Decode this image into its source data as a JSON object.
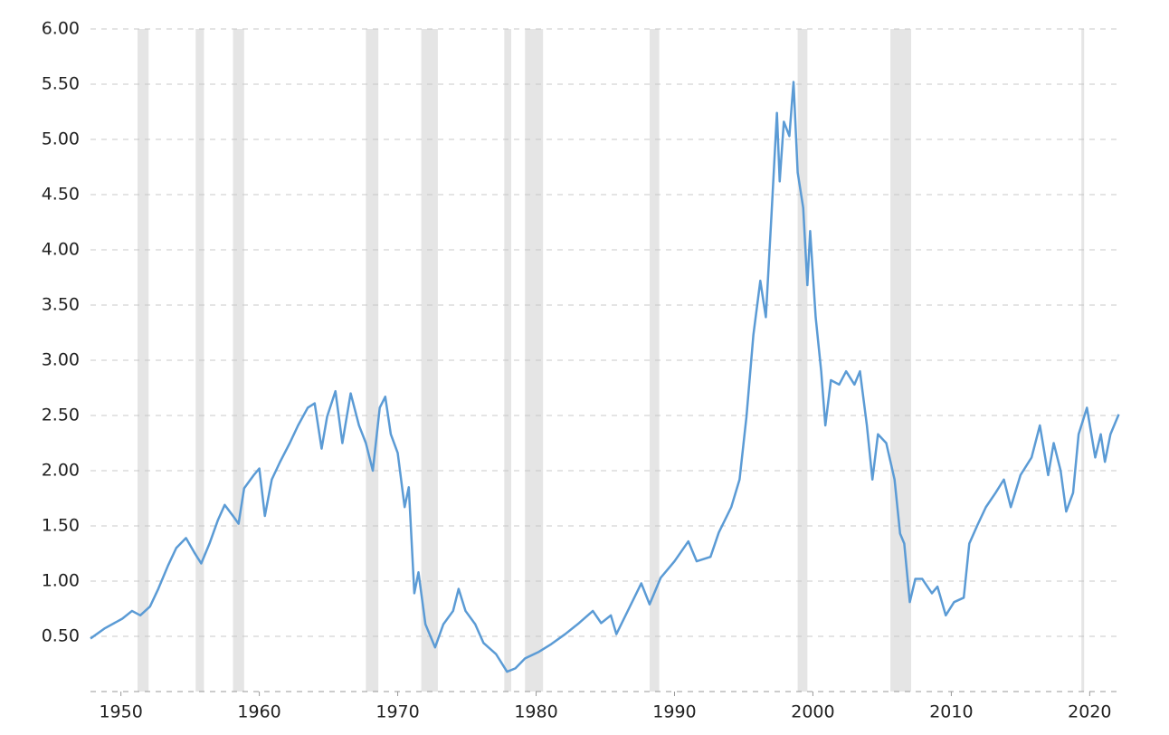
{
  "chart_data": {
    "type": "line",
    "color": "#5b9bd5",
    "band_color": "#e5e5e5",
    "grid": true,
    "xlim": [
      1947.8,
      2022.2
    ],
    "ylim": [
      0,
      6
    ],
    "xticks": [
      1950,
      1960,
      1970,
      1980,
      1990,
      2000,
      2010,
      2020
    ],
    "yticks": [
      {
        "value": 0.5,
        "label": "0.50"
      },
      {
        "value": 1,
        "label": "1.00"
      },
      {
        "value": 1.5,
        "label": "1.50"
      },
      {
        "value": 2,
        "label": "2.00"
      },
      {
        "value": 2.5,
        "label": "2.50"
      },
      {
        "value": 3,
        "label": "3.00"
      },
      {
        "value": 3.5,
        "label": "3.50"
      },
      {
        "value": 4,
        "label": "4.00"
      },
      {
        "value": 4.5,
        "label": "4.50"
      },
      {
        "value": 5,
        "label": "5.00"
      },
      {
        "value": 5.5,
        "label": "5.50"
      },
      {
        "value": 6,
        "label": "6.00"
      }
    ],
    "shaded_periods": [
      [
        1951.2,
        1952.0
      ],
      [
        1955.4,
        1956.0
      ],
      [
        1958.1,
        1958.9
      ],
      [
        1967.7,
        1968.6
      ],
      [
        1971.7,
        1972.9
      ],
      [
        1977.7,
        1978.2
      ],
      [
        1979.2,
        1980.5
      ],
      [
        1988.2,
        1988.9
      ],
      [
        1998.9,
        1999.6
      ],
      [
        2005.6,
        2007.1
      ],
      [
        2019.4,
        2019.6
      ]
    ],
    "x": [
      1947.8,
      1948.8,
      1950.1,
      1950.8,
      1951.4,
      1952.1,
      1952.7,
      1953.4,
      1954.0,
      1954.7,
      1955.3,
      1955.8,
      1956.4,
      1957.0,
      1957.5,
      1958.1,
      1958.5,
      1958.9,
      1959.6,
      1960.0,
      1960.4,
      1960.9,
      1961.5,
      1962.2,
      1962.8,
      1963.5,
      1964.0,
      1964.5,
      1964.9,
      1965.5,
      1966.0,
      1966.6,
      1967.2,
      1967.7,
      1968.2,
      1968.7,
      1969.1,
      1969.5,
      1970.0,
      1970.5,
      1970.8,
      1971.2,
      1971.5,
      1972.0,
      1972.7,
      1973.3,
      1974.0,
      1974.4,
      1974.9,
      1975.6,
      1976.2,
      1977.1,
      1977.9,
      1978.5,
      1979.2,
      1980.2,
      1981.1,
      1982.1,
      1983.1,
      1984.1,
      1984.7,
      1985.4,
      1985.8,
      1986.7,
      1987.6,
      1988.2,
      1989.0,
      1990.0,
      1991.0,
      1991.6,
      1992.6,
      1993.2,
      1994.1,
      1994.7,
      1995.2,
      1995.7,
      1996.2,
      1996.6,
      1997.0,
      1997.4,
      1997.6,
      1997.9,
      1998.3,
      1998.6,
      1998.9,
      1999.3,
      1999.6,
      1999.8,
      2000.2,
      2000.6,
      2000.9,
      2001.3,
      2001.9,
      2002.4,
      2003.0,
      2003.4,
      2003.9,
      2004.3,
      2004.7,
      2005.3,
      2005.9,
      2006.3,
      2006.6,
      2007.0,
      2007.4,
      2007.9,
      2008.6,
      2009.0,
      2009.6,
      2010.2,
      2010.9,
      2011.3,
      2011.9,
      2012.5,
      2013.2,
      2013.8,
      2014.3,
      2015.0,
      2015.8,
      2016.4,
      2017.0,
      2017.4,
      2017.9,
      2018.3,
      2018.8,
      2019.2,
      2019.8,
      2020.4,
      2020.8,
      2021.1,
      2021.5,
      2022.1
    ],
    "values": [
      0.48,
      0.57,
      0.66,
      0.73,
      0.69,
      0.77,
      0.93,
      1.14,
      1.3,
      1.39,
      1.26,
      1.16,
      1.34,
      1.55,
      1.69,
      1.59,
      1.52,
      1.84,
      1.96,
      2.02,
      1.59,
      1.92,
      2.08,
      2.25,
      2.41,
      2.57,
      2.61,
      2.2,
      2.49,
      2.72,
      2.25,
      2.7,
      2.41,
      2.25,
      2.0,
      2.57,
      2.67,
      2.33,
      2.16,
      1.67,
      1.85,
      0.89,
      1.08,
      0.61,
      0.4,
      0.61,
      0.73,
      0.93,
      0.73,
      0.61,
      0.44,
      0.34,
      0.18,
      0.21,
      0.3,
      0.36,
      0.43,
      0.52,
      0.62,
      0.73,
      0.62,
      0.69,
      0.52,
      0.75,
      0.98,
      0.79,
      1.03,
      1.18,
      1.36,
      1.18,
      1.22,
      1.44,
      1.67,
      1.92,
      2.49,
      3.23,
      3.72,
      3.39,
      4.3,
      5.24,
      4.62,
      5.16,
      5.03,
      5.52,
      4.7,
      4.38,
      3.68,
      4.17,
      3.39,
      2.9,
      2.41,
      2.82,
      2.78,
      2.9,
      2.78,
      2.9,
      2.41,
      1.92,
      2.33,
      2.25,
      1.92,
      1.43,
      1.34,
      0.81,
      1.02,
      1.02,
      0.89,
      0.95,
      0.69,
      0.81,
      0.85,
      1.34,
      1.51,
      1.67,
      1.8,
      1.92,
      1.67,
      1.96,
      2.12,
      2.41,
      1.96,
      2.25,
      2.0,
      1.63,
      1.8,
      2.33,
      2.57,
      2.12,
      2.33,
      2.08,
      2.33,
      2.51
    ]
  }
}
